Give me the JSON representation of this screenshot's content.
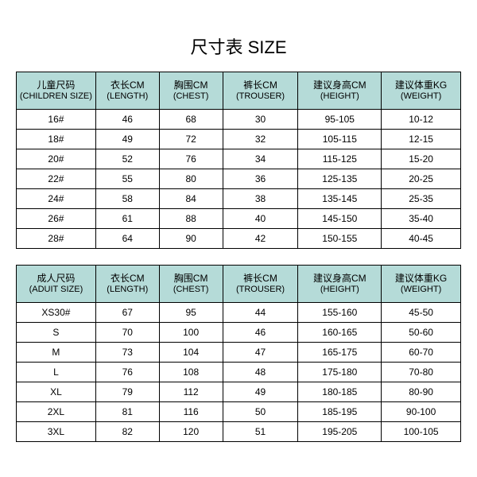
{
  "title": "尺寸表 SIZE",
  "header_bg": "#b5dbd8",
  "children": {
    "columns": [
      {
        "top": "儿童尺码",
        "sub": "(CHILDREN SIZE)"
      },
      {
        "top": "衣长CM",
        "sub": "(LENGTH)"
      },
      {
        "top": "胸围CM",
        "sub": "(CHEST)"
      },
      {
        "top": "裤长CM",
        "sub": "(TROUSER)"
      },
      {
        "top": "建议身高CM",
        "sub": "(HEIGHT)"
      },
      {
        "top": "建议体重KG",
        "sub": "(WEIGHT)"
      }
    ],
    "rows": [
      [
        "16#",
        "46",
        "68",
        "30",
        "95-105",
        "10-12"
      ],
      [
        "18#",
        "49",
        "72",
        "32",
        "105-115",
        "12-15"
      ],
      [
        "20#",
        "52",
        "76",
        "34",
        "115-125",
        "15-20"
      ],
      [
        "22#",
        "55",
        "80",
        "36",
        "125-135",
        "20-25"
      ],
      [
        "24#",
        "58",
        "84",
        "38",
        "135-145",
        "25-35"
      ],
      [
        "26#",
        "61",
        "88",
        "40",
        "145-150",
        "35-40"
      ],
      [
        "28#",
        "64",
        "90",
        "42",
        "150-155",
        "40-45"
      ]
    ]
  },
  "adult": {
    "columns": [
      {
        "top": "成人尺码",
        "sub": "(ADUIT SIZE)"
      },
      {
        "top": "衣长CM",
        "sub": "(LENGTH)"
      },
      {
        "top": "胸围CM",
        "sub": "(CHEST)"
      },
      {
        "top": "裤长CM",
        "sub": "(TROUSER)"
      },
      {
        "top": "建议身高CM",
        "sub": "(HEIGHT)"
      },
      {
        "top": "建议体重KG",
        "sub": "(WEIGHT)"
      }
    ],
    "rows": [
      [
        "XS30#",
        "67",
        "95",
        "44",
        "155-160",
        "45-50"
      ],
      [
        "S",
        "70",
        "100",
        "46",
        "160-165",
        "50-60"
      ],
      [
        "M",
        "73",
        "104",
        "47",
        "165-175",
        "60-70"
      ],
      [
        "L",
        "76",
        "108",
        "48",
        "175-180",
        "70-80"
      ],
      [
        "XL",
        "79",
        "112",
        "49",
        "180-185",
        "80-90"
      ],
      [
        "2XL",
        "81",
        "116",
        "50",
        "185-195",
        "90-100"
      ],
      [
        "3XL",
        "82",
        "120",
        "51",
        "195-205",
        "100-105"
      ]
    ]
  }
}
